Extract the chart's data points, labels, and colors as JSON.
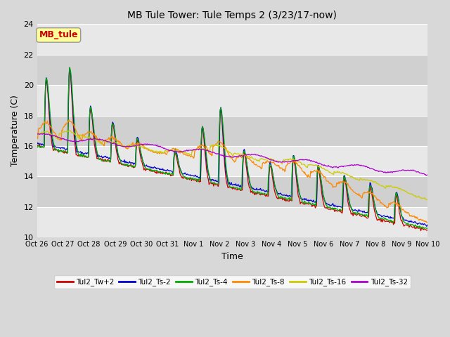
{
  "title": "MB Tule Tower: Tule Temps 2 (3/23/17-now)",
  "xlabel": "Time",
  "ylabel": "Temperature (C)",
  "ylim": [
    10,
    24
  ],
  "yticks": [
    10,
    12,
    14,
    16,
    18,
    20,
    22,
    24
  ],
  "xlim": [
    0,
    15
  ],
  "xtick_labels": [
    "Oct 26",
    "Oct 27",
    "Oct 28",
    "Oct 29",
    "Oct 30",
    "Oct 31",
    "Nov 1",
    "Nov 2",
    "Nov 3",
    "Nov 4",
    "Nov 5",
    "Nov 6",
    "Nov 7",
    "Nov 8",
    "Nov 9",
    "Nov 10"
  ],
  "series_colors": [
    "#cc0000",
    "#0000cc",
    "#00aa00",
    "#ff8800",
    "#cccc00",
    "#aa00cc"
  ],
  "series_labels": [
    "Tul2_Tw+2",
    "Tul2_Ts-2",
    "Tul2_Ts-4",
    "Tul2_Ts-8",
    "Tul2_Ts-16",
    "Tul2_Ts-32"
  ],
  "annotation_box": "MB_tule",
  "annotation_color": "#cc0000",
  "annotation_bg": "#ffff99",
  "bg_color": "#d8d8d8",
  "plot_bg_light": "#e8e8e8",
  "plot_bg_dark": "#d0d0d0",
  "figsize": [
    6.4,
    4.8
  ],
  "dpi": 100
}
